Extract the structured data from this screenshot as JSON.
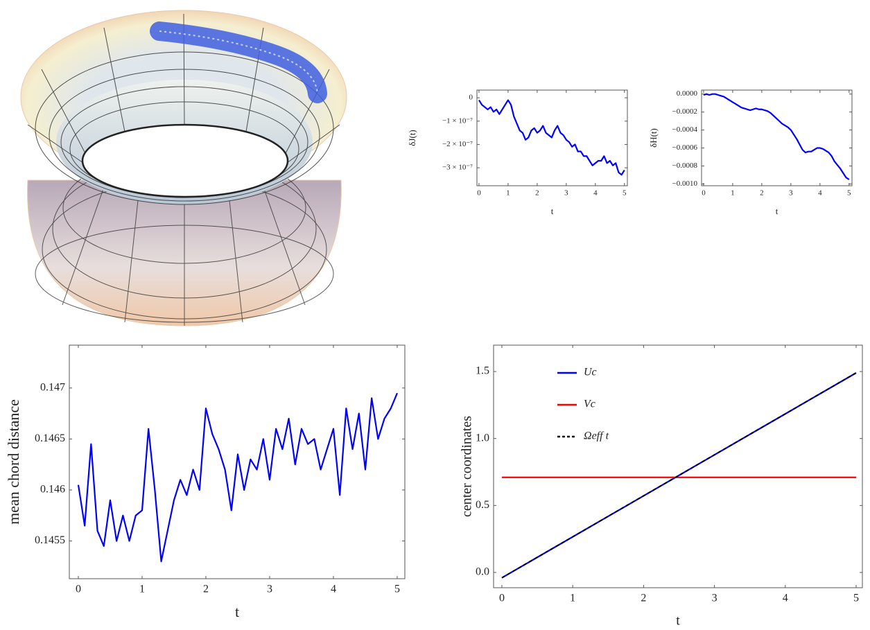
{
  "chart_data": [
    {
      "type": "line",
      "ylabel": "δJ(t)",
      "xlabel": "t",
      "x": [
        0,
        0.1,
        0.2,
        0.3,
        0.4,
        0.5,
        0.6,
        0.7,
        0.8,
        0.9,
        1,
        1.1,
        1.2,
        1.3,
        1.4,
        1.5,
        1.6,
        1.7,
        1.8,
        1.9,
        2,
        2.1,
        2.2,
        2.3,
        2.4,
        2.5,
        2.6,
        2.7,
        2.8,
        2.9,
        3,
        3.1,
        3.2,
        3.3,
        3.4,
        3.5,
        3.6,
        3.7,
        3.8,
        3.9,
        4,
        4.1,
        4.2,
        4.3,
        4.4,
        4.5,
        4.6,
        4.7,
        4.8,
        4.9,
        5
      ],
      "series": [
        {
          "color": "#0000ff",
          "values": [
            -1e-08,
            -3e-08,
            -4e-08,
            -5e-08,
            -4e-08,
            -6e-08,
            -5e-08,
            -7e-08,
            -5e-08,
            -3e-08,
            -1e-08,
            -3e-08,
            -8e-08,
            -1.1e-07,
            -1.4e-07,
            -1.5e-07,
            -1.8e-07,
            -1.7e-07,
            -1.4e-07,
            -1.3e-07,
            -1.5e-07,
            -1.4e-07,
            -1.2e-07,
            -1.5e-07,
            -1.6e-07,
            -1.7e-07,
            -1.4e-07,
            -1.2e-07,
            -1.5e-07,
            -1.6e-07,
            -1.8e-07,
            -1.9e-07,
            -2.1e-07,
            -2e-07,
            -2.3e-07,
            -2.3e-07,
            -2.5e-07,
            -2.5e-07,
            -2.7e-07,
            -2.9e-07,
            -2.8e-07,
            -2.7e-07,
            -2.7e-07,
            -2.5e-07,
            -2.8e-07,
            -2.7e-07,
            -2.9e-07,
            -2.8e-07,
            -3.2e-07,
            -3.3e-07,
            -3.1e-07
          ]
        }
      ],
      "xlim": [
        -0.07,
        5.1
      ],
      "xticks": [
        0,
        1,
        2,
        3,
        4,
        5
      ],
      "ylim": [
        -3.77e-07,
        3.3e-08
      ],
      "yticks": [
        0,
        {
          "value": -1e-07,
          "label": "−1 × 10⁻⁷"
        },
        {
          "value": -2e-07,
          "label": "−2 × 10⁻⁷"
        },
        {
          "value": -3e-07,
          "label": "−3 × 10⁻⁷"
        }
      ]
    },
    {
      "type": "line",
      "ylabel": "δH(t)",
      "xlabel": "t",
      "x": [
        0,
        0.1,
        0.2,
        0.3,
        0.4,
        0.5,
        0.6,
        0.7,
        0.8,
        0.9,
        1,
        1.1,
        1.2,
        1.3,
        1.4,
        1.5,
        1.6,
        1.7,
        1.8,
        1.9,
        2,
        2.1,
        2.2,
        2.3,
        2.4,
        2.5,
        2.6,
        2.7,
        2.8,
        2.9,
        3,
        3.1,
        3.2,
        3.3,
        3.4,
        3.5,
        3.6,
        3.7,
        3.8,
        3.9,
        4,
        4.1,
        4.2,
        4.3,
        4.4,
        4.5,
        4.6,
        4.7,
        4.8,
        4.9,
        5
      ],
      "series": [
        {
          "color": "#0000ff",
          "values": [
            -1e-05,
            0,
            -1e-05,
            0,
            0,
            -1e-05,
            -2e-05,
            -3e-05,
            -5e-05,
            -7e-05,
            -9e-05,
            -0.00011,
            -0.00013,
            -0.00015,
            -0.00016,
            -0.00017,
            -0.00018,
            -0.00017,
            -0.00016,
            -0.00017,
            -0.00017,
            -0.00018,
            -0.00019,
            -0.00021,
            -0.00024,
            -0.00027,
            -0.0003,
            -0.00033,
            -0.00035,
            -0.00037,
            -0.0004,
            -0.00045,
            -0.0005,
            -0.00056,
            -0.00062,
            -0.00065,
            -0.00064,
            -0.00064,
            -0.00062,
            -0.0006,
            -0.0006,
            -0.00061,
            -0.00063,
            -0.00065,
            -0.00069,
            -0.00075,
            -0.00079,
            -0.00083,
            -0.00088,
            -0.00093,
            -0.00095
          ]
        }
      ],
      "xlim": [
        -0.07,
        5.1
      ],
      "xticks": [
        0,
        1,
        2,
        3,
        4,
        5
      ],
      "ylim": [
        -0.00102,
        4.4e-05
      ],
      "yticks": [
        {
          "value": 0,
          "label": "0.0000"
        },
        {
          "value": -0.0002,
          "label": "−0.0002"
        },
        {
          "value": -0.0004,
          "label": "−0.0004"
        },
        {
          "value": -0.0006,
          "label": "−0.0006"
        },
        {
          "value": -0.0008,
          "label": "−0.0008"
        },
        {
          "value": -0.001,
          "label": "−0.0010"
        }
      ]
    },
    {
      "type": "line",
      "ylabel": "mean chord distance",
      "xlabel": "t",
      "x": [
        0,
        0.1,
        0.2,
        0.3,
        0.4,
        0.5,
        0.6,
        0.7,
        0.8,
        0.9,
        1,
        1.1,
        1.2,
        1.3,
        1.4,
        1.5,
        1.6,
        1.7,
        1.8,
        1.9,
        2,
        2.1,
        2.2,
        2.3,
        2.4,
        2.5,
        2.6,
        2.7,
        2.8,
        2.9,
        3,
        3.1,
        3.2,
        3.3,
        3.4,
        3.5,
        3.6,
        3.7,
        3.8,
        3.9,
        4,
        4.1,
        4.2,
        4.3,
        4.4,
        4.5,
        4.6,
        4.7,
        4.8,
        4.9,
        5
      ],
      "series": [
        {
          "color": "#0000ff",
          "values": [
            0.14605,
            0.14565,
            0.14645,
            0.1456,
            0.14545,
            0.1459,
            0.1455,
            0.14575,
            0.1455,
            0.14575,
            0.1458,
            0.1466,
            0.146,
            0.1453,
            0.1456,
            0.1459,
            0.1461,
            0.14595,
            0.1462,
            0.146,
            0.1468,
            0.14655,
            0.1464,
            0.1462,
            0.1458,
            0.14635,
            0.146,
            0.1463,
            0.1462,
            0.1465,
            0.1461,
            0.1466,
            0.1464,
            0.1467,
            0.14625,
            0.1466,
            0.14645,
            0.1465,
            0.1462,
            0.1464,
            0.1466,
            0.14595,
            0.1468,
            0.1464,
            0.14675,
            0.1462,
            0.1469,
            0.1465,
            0.1467,
            0.1468,
            0.14695
          ]
        }
      ],
      "xlim": [
        -0.141,
        5.12
      ],
      "xticks": [
        0,
        1,
        2,
        3,
        4,
        5
      ],
      "ylim": [
        0.14513,
        0.14742
      ],
      "yticks": [
        0.1455,
        0.146,
        0.1465,
        0.147
      ]
    },
    {
      "type": "line",
      "ylabel": "center coordinates",
      "xlabel": "t",
      "legend": "top-left",
      "x": [
        0,
        5
      ],
      "series": [
        {
          "name": "Uc",
          "color": "#0000ff",
          "values": [
            -0.04,
            1.49
          ]
        },
        {
          "name": "Vc",
          "color": "#ff0000",
          "values": [
            0.71,
            0.71
          ]
        },
        {
          "name": "Ωeff t",
          "color": "#000000",
          "dashed": true,
          "values": [
            -0.04,
            1.49
          ]
        }
      ],
      "xlim": [
        -0.117,
        5.088
      ],
      "xticks": [
        0,
        1,
        2,
        3,
        4,
        5
      ],
      "ylim": [
        -0.114,
        1.697
      ],
      "yticks": [
        {
          "value": 0,
          "label": "0.0"
        },
        0.5,
        {
          "value": 1,
          "label": "1.0"
        },
        1.5
      ]
    }
  ]
}
